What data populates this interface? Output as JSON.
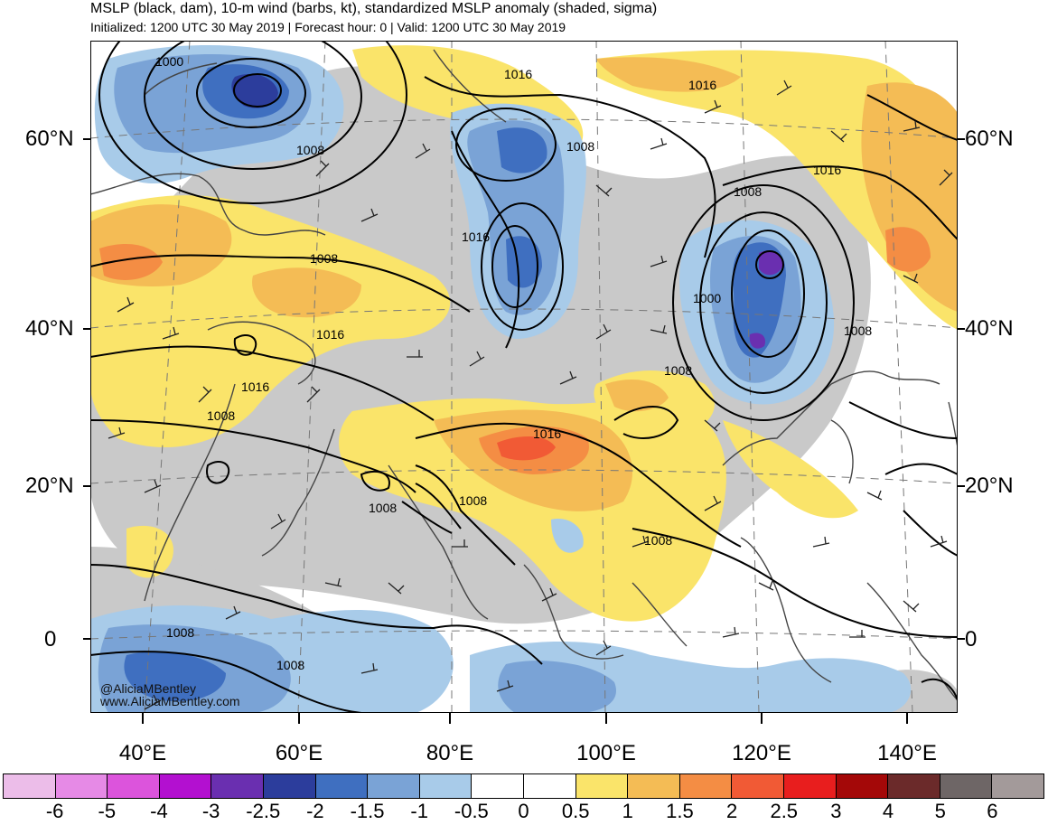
{
  "header": {
    "title": "MSLP (black, dam), 10-m wind (barbs, kt), standardized MSLP anomaly (shaded, sigma)",
    "subtitle": "Initialized: 1200 UTC 30 May 2019 | Forecast hour: 0 | Valid: 1200 UTC 30 May 2019"
  },
  "credit": {
    "line1": "@AliciaMBentley",
    "line2": "www.AliciaMBentley.com"
  },
  "lat_labels": [
    "60°N",
    "40°N",
    "20°N",
    "0"
  ],
  "lon_labels": [
    "40°E",
    "60°E",
    "80°E",
    "100°E",
    "120°E",
    "140°E"
  ],
  "contour_labels": [
    "1000",
    "1016",
    "1016",
    "1008",
    "1008",
    "1008",
    "1016",
    "1016",
    "1008",
    "1016",
    "1016",
    "1008",
    "1008",
    "1016",
    "1000",
    "1008",
    "1008",
    "1008",
    "1008",
    "1008",
    "1008"
  ],
  "colorbar": {
    "labels": [
      "-6",
      "-5",
      "-4",
      "-3",
      "-2.5",
      "-2",
      "-1.5",
      "-1",
      "-0.5",
      "0",
      "0.5",
      "1",
      "1.5",
      "2",
      "2.5",
      "3",
      "4",
      "5",
      "6"
    ],
    "colors": [
      "#ecbde9",
      "#e68ae6",
      "#dc54dc",
      "#b310d0",
      "#6a2fb0",
      "#2c3d9c",
      "#3f6fc0",
      "#7aa3d6",
      "#a8cbe9",
      "#ffffff",
      "#ffffff",
      "#fae46a",
      "#f4bc55",
      "#f48d44",
      "#f15a35",
      "#e81e1e",
      "#a40808",
      "#6b2a2a",
      "#6e6666",
      "#a39a9a"
    ]
  }
}
